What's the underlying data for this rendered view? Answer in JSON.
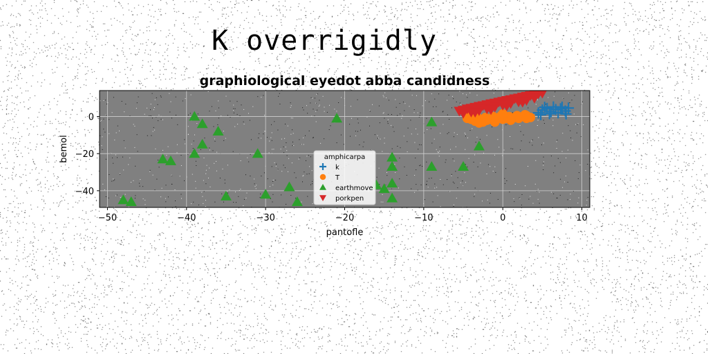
{
  "suptitle": "K overrigidly",
  "chart_data": {
    "type": "scatter",
    "title": "graphiological eyedot abba candidness",
    "xlabel": "pantofle",
    "ylabel": "bemol",
    "xlim": [
      -51,
      11
    ],
    "ylim": [
      -49,
      14
    ],
    "xticks": [
      -50,
      -40,
      -30,
      -20,
      -10,
      0,
      10
    ],
    "yticks": [
      -40,
      -20,
      0
    ],
    "xtick_labels": [
      "−50",
      "−40",
      "−30",
      "−20",
      "−10",
      "0",
      "10"
    ],
    "ytick_labels": [
      "−40",
      "−20",
      "0"
    ],
    "grid": true,
    "legend": {
      "title": "amphicarpa",
      "placement": "lower center"
    },
    "series": [
      {
        "name": "k",
        "marker": "plus",
        "color": "#1f77b4",
        "x": [
          4.5,
          5.0,
          5.6,
          6.1,
          6.7,
          7.3,
          7.9,
          8.3,
          4.8,
          5.9,
          7.0,
          8.0,
          5.3,
          6.4,
          7.5
        ],
        "y": [
          2.0,
          3.5,
          4.4,
          2.6,
          3.8,
          4.2,
          3.0,
          4.6,
          1.0,
          1.5,
          2.0,
          1.4,
          5.0,
          5.2,
          5.1
        ]
      },
      {
        "name": "T",
        "marker": "circle",
        "color": "#ff7f0e",
        "x": [
          -4.5,
          -4.0,
          -3.5,
          -3.0,
          -2.5,
          -2.0,
          -1.5,
          -1.0,
          -0.5,
          0.0,
          0.5,
          1.0,
          1.5,
          2.0,
          2.5,
          3.0,
          3.5,
          -4.2,
          -3.2,
          -2.2,
          -1.2,
          -0.2,
          0.8,
          1.8,
          2.8,
          -3.0,
          -1.0,
          1.0,
          3.0,
          0.0
        ],
        "y": [
          -1.0,
          -1.5,
          -2.5,
          -2.0,
          -3.0,
          -2.0,
          -1.5,
          -2.5,
          -1.0,
          -1.5,
          -1.0,
          -2.0,
          -0.5,
          -1.0,
          0.0,
          0.5,
          -0.5,
          0.0,
          -0.5,
          -0.5,
          0.0,
          0.5,
          0.0,
          0.5,
          1.0,
          -3.5,
          -3.0,
          -1.8,
          -1.0,
          1.5
        ]
      },
      {
        "name": "earthmove",
        "marker": "triangle-up",
        "color": "#2ca02c",
        "x": [
          -48,
          -47,
          -43,
          -42,
          -39,
          -39,
          -38,
          -38,
          -36,
          -35,
          -31,
          -30,
          -27,
          -26,
          -21,
          -16,
          -15,
          -14,
          -14,
          -14,
          -14,
          -9,
          -9,
          -5,
          -3
        ],
        "y": [
          -45,
          -46,
          -23,
          -24,
          0,
          -20,
          -4,
          -15,
          -8,
          -43,
          -20,
          -42,
          -38,
          -46,
          -1,
          -37,
          -39,
          -22,
          -27,
          -36,
          -44,
          -27,
          -3,
          -27,
          -16
        ]
      },
      {
        "name": "porkpen",
        "marker": "triangle-down",
        "color": "#d62728",
        "x": [
          -5.5,
          -5.0,
          -4.5,
          -4.0,
          -3.5,
          -3.0,
          -2.5,
          -2.0,
          -1.5,
          -1.0,
          -0.5,
          0.0,
          0.5,
          1.0,
          1.5,
          2.0,
          2.5,
          3.0,
          3.5,
          4.0,
          4.5,
          5.0,
          -4.0,
          -3.0,
          -2.0,
          -1.0,
          0.0,
          1.0,
          2.0,
          3.0,
          -5.0,
          -3.5,
          -1.5,
          0.5,
          2.5,
          4.0
        ],
        "y": [
          3.0,
          3.5,
          4.2,
          4.6,
          5.1,
          5.6,
          6.0,
          6.5,
          7.0,
          7.4,
          7.9,
          8.3,
          8.8,
          9.2,
          9.7,
          10.1,
          10.6,
          11.0,
          11.4,
          11.8,
          12.3,
          12.7,
          2.5,
          3.3,
          4.2,
          5.2,
          6.2,
          7.1,
          8.0,
          8.8,
          1.8,
          2.4,
          3.8,
          5.8,
          7.8,
          10.0
        ]
      }
    ]
  }
}
